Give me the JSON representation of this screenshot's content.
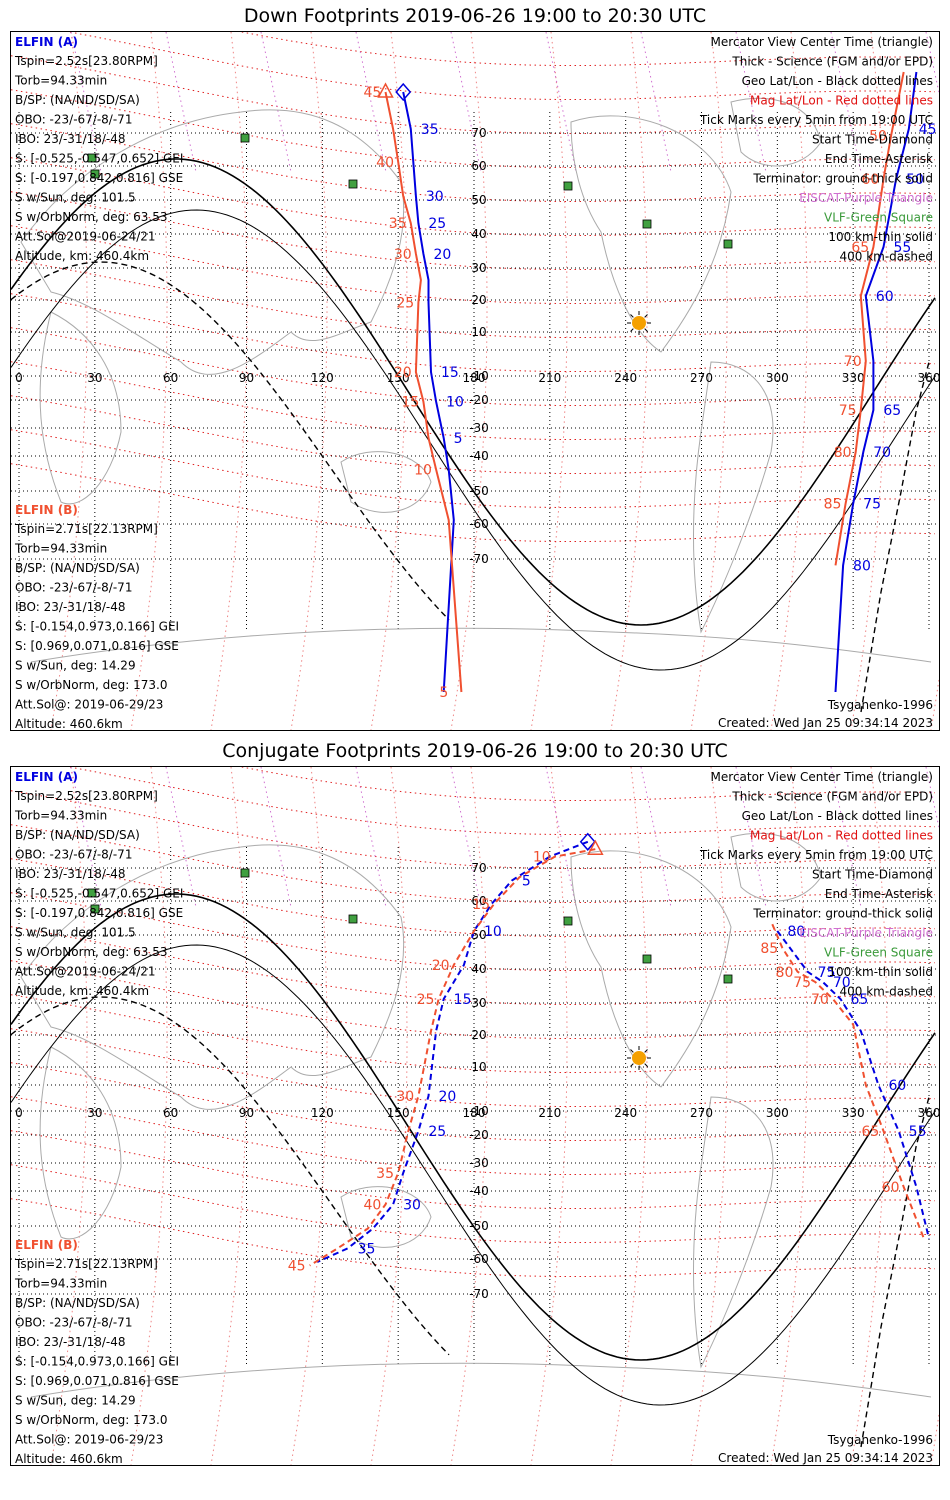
{
  "panels": [
    {
      "title": "Down Footprints 2019-06-26 19:00 to 20:30 UTC",
      "info_a": {
        "header": "ELFIN (A)",
        "lines": [
          "Tspin=2.52s[23.80RPM]",
          "Torb=94.33min",
          "B/SP: (NA/ND/SD/SA)",
          "OBO: -23/-67/-8/-71",
          "IBO: 23/-31/18/-48",
          "S: [-0.525,-0.547,0.652] GEI",
          "S: [-0.197,0.842,0.816] GSE",
          "S w/Sun, deg: 101.5",
          "S w/OrbNorm, deg: 63.53",
          "Att.Sol@2019-06-24/21",
          "Altitude, km: 460.4km"
        ]
      },
      "info_b": {
        "header": "ELFIN (B)",
        "lines": [
          "Tspin=2.71s[22.13RPM]",
          "Torb=94.33min",
          "B/SP: (NA/ND/SD/SA)",
          "OBO: -23/-67/-8/-71",
          "IBO: 23/-31/18/-48",
          "S: [-0.154,0.973,0.166] GEI",
          "S: [0.969,0.071,0.816] GSE",
          "S w/Sun, deg: 14.29",
          "S w/OrbNorm, deg: 173.0",
          "Att.Sol@: 2019-06-29/23",
          "Altitude: 460.6km"
        ]
      },
      "legend": [
        {
          "text": "Mercator View Center Time (triangle)",
          "color": "#000000"
        },
        {
          "text": "Thick - Science (FGM and/or EPD)",
          "color": "#000000"
        },
        {
          "text": "Geo Lat/Lon - Black dotted lines",
          "color": "#000000"
        },
        {
          "text": "Mag Lat/Lon - Red dotted lines",
          "color": "#e01010"
        },
        {
          "text": "Tick Marks every 5min from 19:00 UTC",
          "color": "#000000"
        },
        {
          "text": "Start Time-Diamond",
          "color": "#000000"
        },
        {
          "text": "End Time-Asterisk",
          "color": "#000000"
        },
        {
          "text": "Terminator: ground-thick solid",
          "color": "#000000"
        },
        {
          "text": "EISCAT-Purple Triangle",
          "color": "#d070d0"
        },
        {
          "text": "VLF-Green Square",
          "color": "#3a9a3a"
        },
        {
          "text": "100 km-thin solid",
          "color": "#000000"
        },
        {
          "text": "400 km-dashed",
          "color": "#000000"
        }
      ],
      "model": "Tsyganenko-1996",
      "created": "Created: Wed Jan 25 09:34:14 2023",
      "lon_ticks": [
        "0",
        "30",
        "60",
        "90",
        "120",
        "150",
        "180",
        "210",
        "240",
        "270",
        "300",
        "330",
        "360"
      ],
      "lat_ticks": [
        "70",
        "60",
        "50",
        "40",
        "30",
        "20",
        "10",
        "-10",
        "-20",
        "-30",
        "-40",
        "-50",
        "-60",
        "-70"
      ],
      "chart_data": {
        "type": "scatter",
        "title": "Down Footprints 2019-06-26 19:00 to 20:30 UTC",
        "xlim": [
          0,
          360
        ],
        "ylim": [
          -80,
          80
        ],
        "grid": true,
        "series": [
          {
            "name": "ELFIN (A)",
            "color": "#0000e0",
            "points": [
              [
                152,
                80
              ],
              [
                155,
                70
              ],
              [
                156,
                60
              ],
              [
                157,
                50
              ],
              [
                158,
                42
              ],
              [
                160,
                33
              ],
              [
                162,
                25
              ],
              [
                162,
                18
              ],
              [
                163,
                -10
              ],
              [
                165,
                -22
              ],
              [
                168,
                -35
              ],
              [
                170,
                -45
              ],
              [
                172,
                -60
              ],
              [
                168,
                -85
              ]
            ],
            "tick_labels": [
              {
                "t": "35",
                "i": 1
              },
              {
                "t": "30",
                "i": 3
              },
              {
                "t": "25",
                "i": 4
              },
              {
                "t": "20",
                "i": 5
              },
              {
                "t": "15",
                "i": 8
              },
              {
                "t": "10",
                "i": 9
              },
              {
                "t": "5",
                "i": 10
              }
            ]
          },
          {
            "name": "ELFIN (B)",
            "color": "#f05030",
            "points": [
              [
                145,
                80
              ],
              [
                148,
                70
              ],
              [
                150,
                60
              ],
              [
                152,
                50
              ],
              [
                155,
                42
              ],
              [
                157,
                33
              ],
              [
                159,
                25
              ],
              [
                158,
                18
              ],
              [
                157,
                -10
              ],
              [
                160,
                -22
              ],
              [
                162,
                -35
              ],
              [
                165,
                -45
              ],
              [
                170,
                -60
              ],
              [
                175,
                -85
              ]
            ],
            "tick_labels": [
              {
                "t": "45",
                "i": 0
              },
              {
                "t": "40",
                "i": 2
              },
              {
                "t": "35",
                "i": 4
              },
              {
                "t": "30",
                "i": 5
              },
              {
                "t": "25",
                "i": 7
              },
              {
                "t": "20",
                "i": 8
              },
              {
                "t": "15",
                "i": 9
              },
              {
                "t": "10",
                "i": 11
              },
              {
                "t": "5",
                "i": 13
              }
            ]
          },
          {
            "name": "ELFIN (A) east",
            "color": "#0000e0",
            "points": [
              [
                355,
                85
              ],
              [
                352,
                70
              ],
              [
                347,
                55
              ],
              [
                342,
                35
              ],
              [
                335,
                20
              ],
              [
                338,
                -5
              ],
              [
                338,
                -25
              ],
              [
                334,
                -40
              ],
              [
                330,
                -55
              ],
              [
                326,
                -72
              ],
              [
                323,
                -85
              ]
            ],
            "tick_labels": [
              {
                "t": "45",
                "i": 1
              },
              {
                "t": "50",
                "i": 2
              },
              {
                "t": "55",
                "i": 3
              },
              {
                "t": "60",
                "i": 4
              },
              {
                "t": "65",
                "i": 6
              },
              {
                "t": "70",
                "i": 7
              },
              {
                "t": "75",
                "i": 8
              },
              {
                "t": "80",
                "i": 9
              }
            ]
          },
          {
            "name": "ELFIN (B) east",
            "color": "#f05030",
            "points": [
              [
                350,
                85
              ],
              [
                345,
                68
              ],
              [
                342,
                55
              ],
              [
                338,
                35
              ],
              [
                333,
                20
              ],
              [
                335,
                -5
              ],
              [
                333,
                -25
              ],
              [
                331,
                -40
              ],
              [
                327,
                -55
              ],
              [
                323,
                -72
              ]
            ],
            "tick_labels": [
              {
                "t": "50",
                "i": 1
              },
              {
                "t": "60",
                "i": 2
              },
              {
                "t": "65",
                "i": 3
              },
              {
                "t": "70",
                "i": 5
              },
              {
                "t": "75",
                "i": 6
              },
              {
                "t": "80",
                "i": 7
              },
              {
                "t": "85",
                "i": 8
              }
            ]
          }
        ]
      }
    },
    {
      "title": "Conjugate Footprints 2019-06-26 19:00 to 20:30 UTC",
      "info_a": {
        "header": "ELFIN (A)",
        "lines": [
          "Tspin=2.52s[23.80RPM]",
          "Torb=94.33min",
          "B/SP: (NA/ND/SD/SA)",
          "OBO: -23/-67/-8/-71",
          "IBO: 23/-31/18/-48",
          "S: [-0.525,-0.547,0.652] GEI",
          "S: [-0.197,0.842,0.816] GSE",
          "S w/Sun, deg: 101.5",
          "S w/OrbNorm, deg: 63.53",
          "Att.Sol@2019-06-24/21",
          "Altitude, km: 460.4km"
        ]
      },
      "info_b": {
        "header": "ELFIN (B)",
        "lines": [
          "Tspin=2.71s[22.13RPM]",
          "Torb=94.33min",
          "B/SP: (NA/ND/SD/SA)",
          "OBO: -23/-67/-8/-71",
          "IBO: 23/-31/18/-48",
          "S: [-0.154,0.973,0.166] GEI",
          "S: [0.969,0.071,0.816] GSE",
          "S w/Sun, deg: 14.29",
          "S w/OrbNorm, deg: 173.0",
          "Att.Sol@: 2019-06-29/23",
          "Altitude: 460.6km"
        ]
      },
      "legend": [
        {
          "text": "Mercator View Center Time (triangle)",
          "color": "#000000"
        },
        {
          "text": "Thick - Science (FGM and/or EPD)",
          "color": "#000000"
        },
        {
          "text": "Geo Lat/Lon - Black dotted lines",
          "color": "#000000"
        },
        {
          "text": "Mag Lat/Lon - Red dotted lines",
          "color": "#e01010"
        },
        {
          "text": "Tick Marks every 5min from 19:00 UTC",
          "color": "#000000"
        },
        {
          "text": "Start Time-Diamond",
          "color": "#000000"
        },
        {
          "text": "End Time-Asterisk",
          "color": "#000000"
        },
        {
          "text": "Terminator: ground-thick solid",
          "color": "#000000"
        },
        {
          "text": "EISCAT-Purple Triangle",
          "color": "#d070d0"
        },
        {
          "text": "VLF-Green Square",
          "color": "#3a9a3a"
        },
        {
          "text": "100 km-thin solid",
          "color": "#000000"
        },
        {
          "text": "400 km-dashed",
          "color": "#000000"
        }
      ],
      "model": "Tsyganenko-1996",
      "created": "Created: Wed Jan 25 09:34:14 2023",
      "lon_ticks": [
        "0",
        "30",
        "60",
        "90",
        "120",
        "150",
        "180",
        "210",
        "240",
        "270",
        "300",
        "330",
        "360"
      ],
      "lat_ticks": [
        "70",
        "60",
        "50",
        "40",
        "30",
        "20",
        "10",
        "-10",
        "-20",
        "-30",
        "-40",
        "-50",
        "-60",
        "-70"
      ],
      "chart_data": {
        "type": "scatter",
        "title": "Conjugate Footprints 2019-06-26 19:00 to 20:30 UTC",
        "xlim": [
          0,
          360
        ],
        "ylim": [
          -80,
          80
        ],
        "grid": true,
        "series": [
          {
            "name": "ELFIN (A)",
            "color": "#0000e0",
            "dashed": true,
            "points": [
              [
                225,
                76
              ],
              [
                210,
                72
              ],
              [
                195,
                65
              ],
              [
                187,
                58
              ],
              [
                180,
                50
              ],
              [
                176,
                40
              ],
              [
                168,
                30
              ],
              [
                165,
                20
              ],
              [
                162,
                -5
              ],
              [
                158,
                -20
              ],
              [
                152,
                -35
              ],
              [
                148,
                -45
              ],
              [
                140,
                -52
              ],
              [
                130,
                -58
              ],
              [
                118,
                -62
              ]
            ],
            "tick_labels": [
              {
                "t": "5",
                "i": 2
              },
              {
                "t": "10",
                "i": 4
              },
              {
                "t": "15",
                "i": 6
              },
              {
                "t": "20",
                "i": 8
              },
              {
                "t": "25",
                "i": 9
              },
              {
                "t": "30",
                "i": 11
              },
              {
                "t": "35",
                "i": 13
              }
            ]
          },
          {
            "name": "ELFIN (B)",
            "color": "#f05030",
            "dashed": true,
            "points": [
              [
                228,
                74
              ],
              [
                212,
                72
              ],
              [
                198,
                66
              ],
              [
                188,
                58
              ],
              [
                180,
                50
              ],
              [
                172,
                40
              ],
              [
                166,
                30
              ],
              [
                163,
                20
              ],
              [
                158,
                -5
              ],
              [
                154,
                -20
              ],
              [
                150,
                -35
              ],
              [
                145,
                -45
              ],
              [
                138,
                -52
              ],
              [
                126,
                -58
              ],
              [
                115,
                -63
              ]
            ],
            "tick_labels": [
              {
                "t": "10",
                "i": 1
              },
              {
                "t": "15",
                "i": 3
              },
              {
                "t": "20",
                "i": 5
              },
              {
                "t": "25",
                "i": 6
              },
              {
                "t": "30",
                "i": 8
              },
              {
                "t": "35",
                "i": 10
              },
              {
                "t": "40",
                "i": 11
              },
              {
                "t": "45",
                "i": 14
              }
            ]
          },
          {
            "name": "ELFIN (A) east",
            "color": "#0000e0",
            "dashed": true,
            "points": [
              [
                300,
                50
              ],
              [
                305,
                45
              ],
              [
                312,
                38
              ],
              [
                318,
                35
              ],
              [
                325,
                30
              ],
              [
                333,
                20
              ],
              [
                340,
                0
              ],
              [
                348,
                -20
              ],
              [
                355,
                -40
              ],
              [
                360,
                -55
              ]
            ],
            "tick_labels": [
              {
                "t": "80",
                "i": 0
              },
              {
                "t": "75",
                "i": 2
              },
              {
                "t": "70",
                "i": 3
              },
              {
                "t": "65",
                "i": 4
              },
              {
                "t": "60",
                "i": 6
              },
              {
                "t": "55",
                "i": 7
              }
            ]
          },
          {
            "name": "ELFIN (B) east",
            "color": "#f05030",
            "dashed": true,
            "points": [
              [
                298,
                52
              ],
              [
                302,
                45
              ],
              [
                308,
                38
              ],
              [
                315,
                35
              ],
              [
                322,
                30
              ],
              [
                330,
                22
              ],
              [
                335,
                0
              ],
              [
                342,
                -20
              ],
              [
                350,
                -40
              ],
              [
                358,
                -55
              ]
            ],
            "tick_labels": [
              {
                "t": "85",
                "i": 1
              },
              {
                "t": "80",
                "i": 2
              },
              {
                "t": "75",
                "i": 3
              },
              {
                "t": "70",
                "i": 4
              },
              {
                "t": "65",
                "i": 7
              },
              {
                "t": "60",
                "i": 8
              }
            ]
          }
        ]
      }
    }
  ]
}
